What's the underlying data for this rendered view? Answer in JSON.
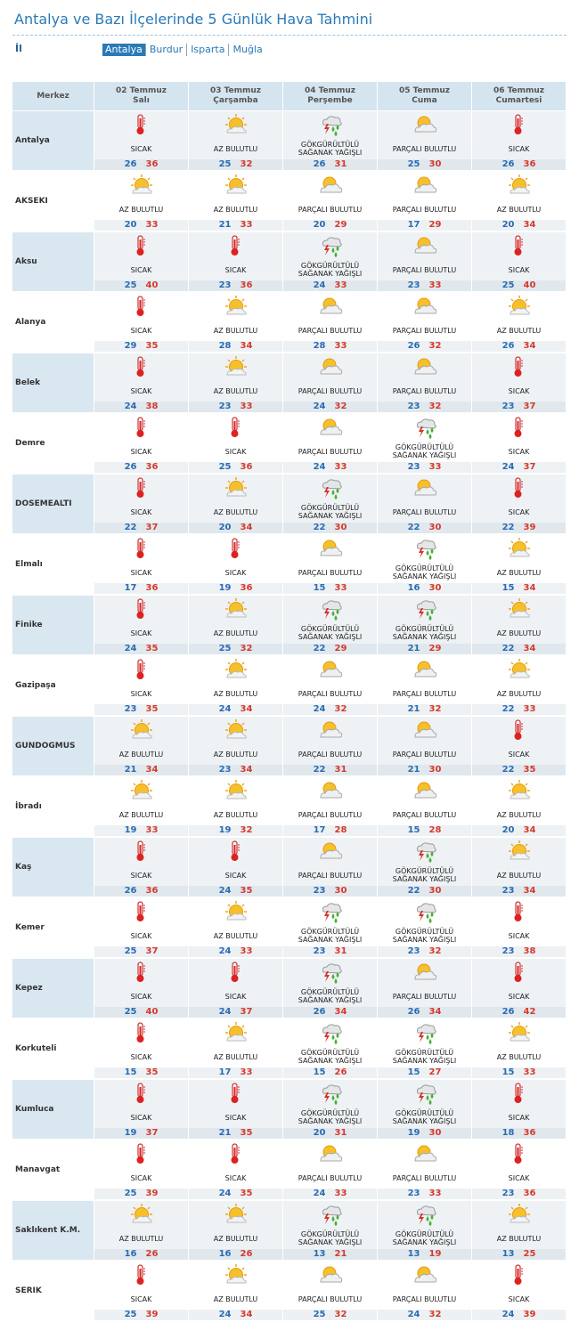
{
  "header": {
    "title": "Antalya ve Bazı İlçelerinde 5 Günlük Hava Tahmini",
    "il_label": "İl",
    "tabs": [
      "Antalya",
      "Burdur",
      "Isparta",
      "Muğla"
    ],
    "active_tab": 0
  },
  "table": {
    "columns": {
      "label": "Merkez",
      "days": [
        {
          "date": "02 Temmuz",
          "weekday": "Salı"
        },
        {
          "date": "03 Temmuz",
          "weekday": "Çarşamba"
        },
        {
          "date": "04 Temmuz",
          "weekday": "Perşembe"
        },
        {
          "date": "05 Temmuz",
          "weekday": "Cuma"
        },
        {
          "date": "06 Temmuz",
          "weekday": "Cumartesi"
        }
      ]
    },
    "rows": [
      {
        "city": "Antalya",
        "days": [
          {
            "condition": "SICAK",
            "min": 26,
            "max": 36
          },
          {
            "condition": "AZ BULUTLU",
            "min": 25,
            "max": 32
          },
          {
            "condition": "GÖKGÜRÜLTÜLÜ SAĞANAK YAĞIŞLI",
            "min": 26,
            "max": 31
          },
          {
            "condition": "PARÇALI BULUTLU",
            "min": 25,
            "max": 30
          },
          {
            "condition": "SICAK",
            "min": 26,
            "max": 36
          }
        ]
      },
      {
        "city": "AKSEKI",
        "days": [
          {
            "condition": "AZ BULUTLU",
            "min": 20,
            "max": 33
          },
          {
            "condition": "AZ BULUTLU",
            "min": 21,
            "max": 33
          },
          {
            "condition": "PARÇALI BULUTLU",
            "min": 20,
            "max": 29
          },
          {
            "condition": "PARÇALI BULUTLU",
            "min": 17,
            "max": 29
          },
          {
            "condition": "AZ BULUTLU",
            "min": 20,
            "max": 34
          }
        ]
      },
      {
        "city": "Aksu",
        "days": [
          {
            "condition": "SICAK",
            "min": 25,
            "max": 40
          },
          {
            "condition": "SICAK",
            "min": 23,
            "max": 36
          },
          {
            "condition": "GÖKGÜRÜLTÜLÜ SAĞANAK YAĞIŞLI",
            "min": 24,
            "max": 33
          },
          {
            "condition": "PARÇALI BULUTLU",
            "min": 23,
            "max": 33
          },
          {
            "condition": "SICAK",
            "min": 25,
            "max": 40
          }
        ]
      },
      {
        "city": "Alanya",
        "days": [
          {
            "condition": "SICAK",
            "min": 29,
            "max": 35
          },
          {
            "condition": "AZ BULUTLU",
            "min": 28,
            "max": 34
          },
          {
            "condition": "PARÇALI BULUTLU",
            "min": 28,
            "max": 33
          },
          {
            "condition": "PARÇALI BULUTLU",
            "min": 26,
            "max": 32
          },
          {
            "condition": "AZ BULUTLU",
            "min": 26,
            "max": 34
          }
        ]
      },
      {
        "city": "Belek",
        "days": [
          {
            "condition": "SICAK",
            "min": 24,
            "max": 38
          },
          {
            "condition": "AZ BULUTLU",
            "min": 23,
            "max": 33
          },
          {
            "condition": "PARÇALI BULUTLU",
            "min": 24,
            "max": 32
          },
          {
            "condition": "PARÇALI BULUTLU",
            "min": 23,
            "max": 32
          },
          {
            "condition": "SICAK",
            "min": 23,
            "max": 37
          }
        ]
      },
      {
        "city": "Demre",
        "days": [
          {
            "condition": "SICAK",
            "min": 26,
            "max": 36
          },
          {
            "condition": "SICAK",
            "min": 25,
            "max": 36
          },
          {
            "condition": "PARÇALI BULUTLU",
            "min": 24,
            "max": 33
          },
          {
            "condition": "GÖKGÜRÜLTÜLÜ SAĞANAK YAĞIŞLI",
            "min": 23,
            "max": 33
          },
          {
            "condition": "SICAK",
            "min": 24,
            "max": 37
          }
        ]
      },
      {
        "city": "DOSEMEALTI",
        "days": [
          {
            "condition": "SICAK",
            "min": 22,
            "max": 37
          },
          {
            "condition": "AZ BULUTLU",
            "min": 20,
            "max": 34
          },
          {
            "condition": "GÖKGÜRÜLTÜLÜ SAĞANAK YAĞIŞLI",
            "min": 22,
            "max": 30
          },
          {
            "condition": "PARÇALI BULUTLU",
            "min": 22,
            "max": 30
          },
          {
            "condition": "SICAK",
            "min": 22,
            "max": 39
          }
        ]
      },
      {
        "city": "Elmalı",
        "days": [
          {
            "condition": "SICAK",
            "min": 17,
            "max": 36
          },
          {
            "condition": "SICAK",
            "min": 19,
            "max": 36
          },
          {
            "condition": "PARÇALI BULUTLU",
            "min": 15,
            "max": 33
          },
          {
            "condition": "GÖKGÜRÜLTÜLÜ SAĞANAK YAĞIŞLI",
            "min": 16,
            "max": 30
          },
          {
            "condition": "AZ BULUTLU",
            "min": 15,
            "max": 34
          }
        ]
      },
      {
        "city": "Finike",
        "days": [
          {
            "condition": "SICAK",
            "min": 24,
            "max": 35
          },
          {
            "condition": "AZ BULUTLU",
            "min": 25,
            "max": 32
          },
          {
            "condition": "GÖKGÜRÜLTÜLÜ SAĞANAK YAĞIŞLI",
            "min": 22,
            "max": 29
          },
          {
            "condition": "GÖKGÜRÜLTÜLÜ SAĞANAK YAĞIŞLI",
            "min": 21,
            "max": 29
          },
          {
            "condition": "AZ BULUTLU",
            "min": 22,
            "max": 34
          }
        ]
      },
      {
        "city": "Gazipaşa",
        "days": [
          {
            "condition": "SICAK",
            "min": 23,
            "max": 35
          },
          {
            "condition": "AZ BULUTLU",
            "min": 24,
            "max": 34
          },
          {
            "condition": "PARÇALI BULUTLU",
            "min": 24,
            "max": 32
          },
          {
            "condition": "PARÇALI BULUTLU",
            "min": 21,
            "max": 32
          },
          {
            "condition": "AZ BULUTLU",
            "min": 22,
            "max": 33
          }
        ]
      },
      {
        "city": "GUNDOGMUS",
        "days": [
          {
            "condition": "AZ BULUTLU",
            "min": 21,
            "max": 34
          },
          {
            "condition": "AZ BULUTLU",
            "min": 23,
            "max": 34
          },
          {
            "condition": "PARÇALI BULUTLU",
            "min": 22,
            "max": 31
          },
          {
            "condition": "PARÇALI BULUTLU",
            "min": 21,
            "max": 30
          },
          {
            "condition": "SICAK",
            "min": 22,
            "max": 35
          }
        ]
      },
      {
        "city": "İbradı",
        "days": [
          {
            "condition": "AZ BULUTLU",
            "min": 19,
            "max": 33
          },
          {
            "condition": "AZ BULUTLU",
            "min": 19,
            "max": 32
          },
          {
            "condition": "PARÇALI BULUTLU",
            "min": 17,
            "max": 28
          },
          {
            "condition": "PARÇALI BULUTLU",
            "min": 15,
            "max": 28
          },
          {
            "condition": "AZ BULUTLU",
            "min": 20,
            "max": 34
          }
        ]
      },
      {
        "city": "Kaş",
        "days": [
          {
            "condition": "SICAK",
            "min": 26,
            "max": 36
          },
          {
            "condition": "SICAK",
            "min": 24,
            "max": 35
          },
          {
            "condition": "PARÇALI BULUTLU",
            "min": 23,
            "max": 30
          },
          {
            "condition": "GÖKGÜRÜLTÜLÜ SAĞANAK YAĞIŞLI",
            "min": 22,
            "max": 30
          },
          {
            "condition": "AZ BULUTLU",
            "min": 23,
            "max": 34
          }
        ]
      },
      {
        "city": "Kemer",
        "days": [
          {
            "condition": "SICAK",
            "min": 25,
            "max": 37
          },
          {
            "condition": "AZ BULUTLU",
            "min": 24,
            "max": 33
          },
          {
            "condition": "GÖKGÜRÜLTÜLÜ SAĞANAK YAĞIŞLI",
            "min": 23,
            "max": 31
          },
          {
            "condition": "GÖKGÜRÜLTÜLÜ SAĞANAK YAĞIŞLI",
            "min": 23,
            "max": 32
          },
          {
            "condition": "SICAK",
            "min": 23,
            "max": 38
          }
        ]
      },
      {
        "city": "Kepez",
        "days": [
          {
            "condition": "SICAK",
            "min": 25,
            "max": 40
          },
          {
            "condition": "SICAK",
            "min": 24,
            "max": 37
          },
          {
            "condition": "GÖKGÜRÜLTÜLÜ SAĞANAK YAĞIŞLI",
            "min": 26,
            "max": 34
          },
          {
            "condition": "PARÇALI BULUTLU",
            "min": 26,
            "max": 34
          },
          {
            "condition": "SICAK",
            "min": 26,
            "max": 42
          }
        ]
      },
      {
        "city": "Korkuteli",
        "days": [
          {
            "condition": "SICAK",
            "min": 15,
            "max": 35
          },
          {
            "condition": "AZ BULUTLU",
            "min": 17,
            "max": 33
          },
          {
            "condition": "GÖKGÜRÜLTÜLÜ SAĞANAK YAĞIŞLI",
            "min": 15,
            "max": 26
          },
          {
            "condition": "GÖKGÜRÜLTÜLÜ SAĞANAK YAĞIŞLI",
            "min": 15,
            "max": 27
          },
          {
            "condition": "AZ BULUTLU",
            "min": 15,
            "max": 33
          }
        ]
      },
      {
        "city": "Kumluca",
        "days": [
          {
            "condition": "SICAK",
            "min": 19,
            "max": 37
          },
          {
            "condition": "SICAK",
            "min": 21,
            "max": 35
          },
          {
            "condition": "GÖKGÜRÜLTÜLÜ SAĞANAK YAĞIŞLI",
            "min": 20,
            "max": 31
          },
          {
            "condition": "GÖKGÜRÜLTÜLÜ SAĞANAK YAĞIŞLI",
            "min": 19,
            "max": 30
          },
          {
            "condition": "SICAK",
            "min": 18,
            "max": 36
          }
        ]
      },
      {
        "city": "Manavgat",
        "days": [
          {
            "condition": "SICAK",
            "min": 25,
            "max": 39
          },
          {
            "condition": "SICAK",
            "min": 24,
            "max": 35
          },
          {
            "condition": "PARÇALI BULUTLU",
            "min": 24,
            "max": 33
          },
          {
            "condition": "PARÇALI BULUTLU",
            "min": 23,
            "max": 33
          },
          {
            "condition": "SICAK",
            "min": 23,
            "max": 36
          }
        ]
      },
      {
        "city": "Saklıkent K.M.",
        "days": [
          {
            "condition": "AZ BULUTLU",
            "min": 16,
            "max": 26
          },
          {
            "condition": "AZ BULUTLU",
            "min": 16,
            "max": 26
          },
          {
            "condition": "GÖKGÜRÜLTÜLÜ SAĞANAK YAĞIŞLI",
            "min": 13,
            "max": 21
          },
          {
            "condition": "GÖKGÜRÜLTÜLÜ SAĞANAK YAĞIŞLI",
            "min": 13,
            "max": 19
          },
          {
            "condition": "AZ BULUTLU",
            "min": 13,
            "max": 25
          }
        ]
      },
      {
        "city": "SERIK",
        "days": [
          {
            "condition": "SICAK",
            "min": 25,
            "max": 39
          },
          {
            "condition": "AZ BULUTLU",
            "min": 24,
            "max": 34
          },
          {
            "condition": "PARÇALI BULUTLU",
            "min": 25,
            "max": 32
          },
          {
            "condition": "PARÇALI BULUTLU",
            "min": 24,
            "max": 32
          },
          {
            "condition": "SICAK",
            "min": 24,
            "max": 39
          }
        ]
      }
    ]
  }
}
